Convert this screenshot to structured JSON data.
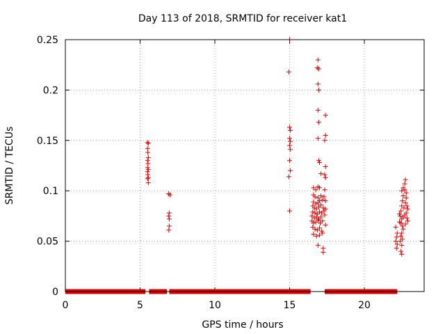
{
  "chart_data": {
    "type": "scatter",
    "title": "Day 113 of 2018, SRMTID for receiver kat1",
    "xlabel": "GPS time / hours",
    "ylabel": "SRMTID / TECUs",
    "xlim": [
      0,
      24
    ],
    "ylim": [
      0,
      0.25
    ],
    "xticks": [
      0,
      5,
      10,
      15,
      20
    ],
    "yticks": [
      0,
      0.05,
      0.1,
      0.15,
      0.2,
      0.25
    ],
    "xtick_labels": [
      "0",
      "5",
      "10",
      "15",
      "20"
    ],
    "ytick_labels": [
      "0",
      "0.05",
      "0.1",
      "0.15",
      "0.2",
      "0.25"
    ],
    "grid": true,
    "marker": "+",
    "color": "#e00000",
    "zero_segments": [
      [
        0.0,
        5.35
      ],
      [
        5.6,
        6.8
      ],
      [
        6.95,
        16.4
      ],
      [
        17.35,
        22.2
      ]
    ],
    "series": [
      {
        "points": [
          [
            5.5,
            0.148
          ],
          [
            5.55,
            0.147
          ],
          [
            5.5,
            0.142
          ],
          [
            5.52,
            0.138
          ],
          [
            5.55,
            0.133
          ],
          [
            5.5,
            0.13
          ],
          [
            5.53,
            0.127
          ],
          [
            5.5,
            0.123
          ],
          [
            5.55,
            0.121
          ],
          [
            5.5,
            0.119
          ],
          [
            5.52,
            0.116
          ],
          [
            5.55,
            0.113
          ],
          [
            5.5,
            0.112
          ],
          [
            5.55,
            0.108
          ],
          [
            6.9,
            0.097
          ],
          [
            7.0,
            0.096
          ],
          [
            6.95,
            0.078
          ],
          [
            6.92,
            0.075
          ],
          [
            6.95,
            0.072
          ],
          [
            6.95,
            0.065
          ],
          [
            6.92,
            0.061
          ],
          [
            15.0,
            0.25
          ],
          [
            14.95,
            0.218
          ],
          [
            15.0,
            0.163
          ],
          [
            15.05,
            0.16
          ],
          [
            15.0,
            0.152
          ],
          [
            15.05,
            0.149
          ],
          [
            15.0,
            0.145
          ],
          [
            15.05,
            0.141
          ],
          [
            15.0,
            0.13
          ],
          [
            15.05,
            0.12
          ],
          [
            14.95,
            0.114
          ],
          [
            15.0,
            0.08
          ],
          [
            16.9,
            0.23
          ],
          [
            16.85,
            0.222
          ],
          [
            16.95,
            0.221
          ],
          [
            16.9,
            0.206
          ],
          [
            16.95,
            0.2
          ],
          [
            16.9,
            0.18
          ],
          [
            16.95,
            0.168
          ],
          [
            17.4,
            0.175
          ],
          [
            17.4,
            0.155
          ],
          [
            17.35,
            0.15
          ],
          [
            16.9,
            0.152
          ],
          [
            16.95,
            0.13
          ],
          [
            17.0,
            0.128
          ],
          [
            17.4,
            0.124
          ],
          [
            17.1,
            0.117
          ],
          [
            17.35,
            0.116
          ],
          [
            17.4,
            0.113
          ],
          [
            16.6,
            0.103
          ],
          [
            16.75,
            0.101
          ],
          [
            16.9,
            0.104
          ],
          [
            17.0,
            0.103
          ],
          [
            17.35,
            0.101
          ],
          [
            16.6,
            0.096
          ],
          [
            16.7,
            0.094
          ],
          [
            16.9,
            0.093
          ],
          [
            17.1,
            0.095
          ],
          [
            17.3,
            0.094
          ],
          [
            16.6,
            0.089
          ],
          [
            16.75,
            0.087
          ],
          [
            16.9,
            0.088
          ],
          [
            17.0,
            0.09
          ],
          [
            17.2,
            0.091
          ],
          [
            17.4,
            0.09
          ],
          [
            16.55,
            0.085
          ],
          [
            16.65,
            0.083
          ],
          [
            16.8,
            0.082
          ],
          [
            16.95,
            0.084
          ],
          [
            17.1,
            0.086
          ],
          [
            17.25,
            0.083
          ],
          [
            17.4,
            0.082
          ],
          [
            16.55,
            0.079
          ],
          [
            16.7,
            0.078
          ],
          [
            16.85,
            0.077
          ],
          [
            17.0,
            0.079
          ],
          [
            17.15,
            0.078
          ],
          [
            17.3,
            0.08
          ],
          [
            16.5,
            0.075
          ],
          [
            16.65,
            0.073
          ],
          [
            16.8,
            0.074
          ],
          [
            16.95,
            0.072
          ],
          [
            17.1,
            0.074
          ],
          [
            17.35,
            0.076
          ],
          [
            16.5,
            0.07
          ],
          [
            16.6,
            0.068
          ],
          [
            16.75,
            0.069
          ],
          [
            16.9,
            0.071
          ],
          [
            17.05,
            0.068
          ],
          [
            17.2,
            0.07
          ],
          [
            17.4,
            0.066
          ],
          [
            16.55,
            0.064
          ],
          [
            16.7,
            0.062
          ],
          [
            16.85,
            0.061
          ],
          [
            17.0,
            0.063
          ],
          [
            17.15,
            0.06
          ],
          [
            16.6,
            0.057
          ],
          [
            16.8,
            0.055
          ],
          [
            17.0,
            0.056
          ],
          [
            17.2,
            0.058
          ],
          [
            16.9,
            0.046
          ],
          [
            17.25,
            0.043
          ],
          [
            17.25,
            0.039
          ],
          [
            22.1,
            0.064
          ],
          [
            22.2,
            0.058
          ],
          [
            22.15,
            0.054
          ],
          [
            22.1,
            0.05
          ],
          [
            22.2,
            0.047
          ],
          [
            22.15,
            0.043
          ],
          [
            22.35,
            0.069
          ],
          [
            22.4,
            0.075
          ],
          [
            22.45,
            0.08
          ],
          [
            22.5,
            0.085
          ],
          [
            22.55,
            0.09
          ],
          [
            22.6,
            0.095
          ],
          [
            22.5,
            0.1
          ],
          [
            22.6,
            0.103
          ],
          [
            22.7,
            0.101
          ],
          [
            22.75,
            0.111
          ],
          [
            22.7,
            0.107
          ],
          [
            22.8,
            0.098
          ],
          [
            22.8,
            0.093
          ],
          [
            22.75,
            0.088
          ],
          [
            22.85,
            0.085
          ],
          [
            22.9,
            0.082
          ],
          [
            22.8,
            0.078
          ],
          [
            22.7,
            0.076
          ],
          [
            22.6,
            0.074
          ],
          [
            22.5,
            0.072
          ],
          [
            22.45,
            0.068
          ],
          [
            22.55,
            0.065
          ],
          [
            22.6,
            0.062
          ],
          [
            22.5,
            0.058
          ],
          [
            22.45,
            0.055
          ],
          [
            22.55,
            0.052
          ],
          [
            22.4,
            0.05
          ],
          [
            22.5,
            0.046
          ],
          [
            22.45,
            0.04
          ],
          [
            22.5,
            0.037
          ],
          [
            22.85,
            0.073
          ],
          [
            22.9,
            0.07
          ],
          [
            22.75,
            0.067
          ],
          [
            22.65,
            0.083
          ],
          [
            22.35,
            0.077
          ]
        ]
      }
    ]
  }
}
